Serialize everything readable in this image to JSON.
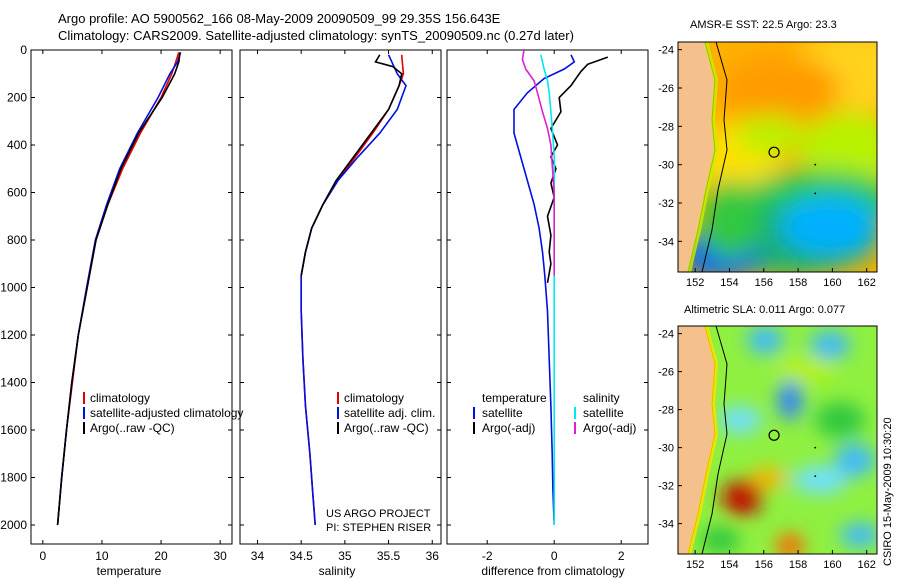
{
  "title": {
    "line1": "Argo profile: AO 5900562_166 08-May-2009 20090509_99 29.35S 156.643E",
    "line2": "Climatology: CARS2009. Satellite-adjusted climatology: synTS_20090509.nc (0.27d later)"
  },
  "colors": {
    "red": "#e00000",
    "blue": "#0010e0",
    "black": "#000000",
    "cyan": "#00e8f0",
    "magenta": "#e020d0"
  },
  "chart_data": [
    {
      "type": "line",
      "id": "temperature",
      "xlabel": "temperature",
      "ylabel": "",
      "xlim": [
        -2,
        32
      ],
      "ylim": [
        2080,
        0
      ],
      "y_inverted": true,
      "xticks": [
        0,
        10,
        20,
        30
      ],
      "yticks": [
        0,
        200,
        400,
        600,
        800,
        1000,
        1200,
        1400,
        1600,
        1800,
        2000
      ],
      "legend": [
        "climatology",
        "satellite-adjusted climatology",
        "Argo(..raw -QC)"
      ],
      "legend_pos": "bottom-right",
      "series": [
        {
          "name": "climatology",
          "color": "red",
          "points": [
            [
              23,
              10
            ],
            [
              22.5,
              50
            ],
            [
              21.8,
              100
            ],
            [
              20,
              200
            ],
            [
              16.5,
              350
            ],
            [
              13.5,
              500
            ],
            [
              11,
              650
            ],
            [
              9,
              800
            ],
            [
              7.5,
              1000
            ],
            [
              6,
              1200
            ],
            [
              5,
              1400
            ],
            [
              4,
              1600
            ],
            [
              3.2,
              1800
            ],
            [
              2.5,
              2000
            ]
          ]
        },
        {
          "name": "satellite-adjusted climatology",
          "color": "blue",
          "points": [
            [
              23.3,
              10
            ],
            [
              22.8,
              50
            ],
            [
              21.5,
              100
            ],
            [
              19.5,
              200
            ],
            [
              16,
              350
            ],
            [
              13,
              500
            ],
            [
              10.8,
              650
            ],
            [
              8.9,
              800
            ],
            [
              7.4,
              1000
            ],
            [
              6,
              1200
            ],
            [
              4.9,
              1400
            ],
            [
              4,
              1600
            ],
            [
              3.2,
              1800
            ],
            [
              2.5,
              2000
            ]
          ]
        },
        {
          "name": "Argo(..raw -QC)",
          "color": "black",
          "points": [
            [
              23.2,
              10
            ],
            [
              23,
              50
            ],
            [
              22.3,
              100
            ],
            [
              20.2,
              200
            ],
            [
              16.2,
              350
            ],
            [
              13.2,
              500
            ],
            [
              11,
              650
            ],
            [
              9,
              800
            ],
            [
              7.5,
              1000
            ],
            [
              6,
              1200
            ],
            [
              4.9,
              1400
            ],
            [
              4,
              1600
            ],
            [
              3.2,
              1800
            ],
            [
              2.5,
              2000
            ]
          ]
        }
      ]
    },
    {
      "type": "line",
      "id": "salinity",
      "xlabel": "salinity",
      "xlim": [
        33.8,
        36.1
      ],
      "ylim": [
        2080,
        0
      ],
      "y_inverted": true,
      "xticks": [
        34,
        34.5,
        35,
        35.5,
        36
      ],
      "legend": [
        "climatology",
        "satellite adj. clim.",
        "Argo(..raw -QC)"
      ],
      "legend_pos": "bottom-right",
      "annotation": [
        "US ARGO PROJECT",
        "PI: STEPHEN RISER"
      ],
      "series": [
        {
          "name": "climatology",
          "color": "red",
          "points": [
            [
              35.65,
              20
            ],
            [
              35.66,
              60
            ],
            [
              35.67,
              100
            ],
            [
              35.62,
              150
            ],
            [
              35.5,
              250
            ],
            [
              35.32,
              350
            ],
            [
              35.12,
              450
            ],
            [
              34.92,
              550
            ],
            [
              34.75,
              650
            ],
            [
              34.62,
              750
            ],
            [
              34.55,
              850
            ],
            [
              34.5,
              950
            ],
            [
              34.5,
              1100
            ],
            [
              34.52,
              1300
            ],
            [
              34.55,
              1500
            ],
            [
              34.6,
              1700
            ],
            [
              34.63,
              1850
            ],
            [
              34.66,
              2000
            ]
          ]
        },
        {
          "name": "satellite adj. clim.",
          "color": "blue",
          "points": [
            [
              35.5,
              20
            ],
            [
              35.55,
              60
            ],
            [
              35.6,
              100
            ],
            [
              35.7,
              150
            ],
            [
              35.6,
              250
            ],
            [
              35.4,
              350
            ],
            [
              35.15,
              450
            ],
            [
              34.92,
              550
            ],
            [
              34.75,
              650
            ],
            [
              34.62,
              750
            ],
            [
              34.55,
              850
            ],
            [
              34.5,
              950
            ],
            [
              34.5,
              1100
            ],
            [
              34.52,
              1300
            ],
            [
              34.55,
              1500
            ],
            [
              34.6,
              1700
            ],
            [
              34.63,
              1850
            ],
            [
              34.66,
              2000
            ]
          ]
        },
        {
          "name": "Argo(..raw -QC)",
          "color": "black",
          "points": [
            [
              35.4,
              20
            ],
            [
              35.35,
              50
            ],
            [
              35.55,
              70
            ],
            [
              35.65,
              100
            ],
            [
              35.62,
              150
            ],
            [
              35.5,
              250
            ],
            [
              35.3,
              350
            ],
            [
              35.1,
              450
            ],
            [
              34.9,
              550
            ],
            [
              34.75,
              650
            ],
            [
              34.62,
              750
            ],
            [
              34.55,
              850
            ],
            [
              34.5,
              950
            ]
          ]
        }
      ]
    },
    {
      "type": "line",
      "id": "difference",
      "xlabel": "difference from climatology",
      "xlim": [
        -3.2,
        2.8
      ],
      "ylim": [
        2080,
        0
      ],
      "y_inverted": true,
      "xticks": [
        -2,
        0,
        2
      ],
      "legend_headers": [
        "temperature",
        "salinity"
      ],
      "legend": [
        "satellite",
        "Argo(-adj)",
        "satellite",
        "Argo(-adj)"
      ],
      "legend_pos": "bottom",
      "series": [
        {
          "name": "temperature satellite",
          "color": "blue",
          "points": [
            [
              0.5,
              20
            ],
            [
              0.6,
              50
            ],
            [
              0.3,
              80
            ],
            [
              -0.3,
              120
            ],
            [
              -0.8,
              180
            ],
            [
              -1.2,
              250
            ],
            [
              -1.2,
              350
            ],
            [
              -1,
              450
            ],
            [
              -0.8,
              550
            ],
            [
              -0.6,
              650
            ],
            [
              -0.45,
              750
            ],
            [
              -0.35,
              850
            ],
            [
              -0.28,
              950
            ],
            [
              -0.2,
              1100
            ],
            [
              -0.15,
              1300
            ],
            [
              -0.1,
              1500
            ],
            [
              -0.06,
              1700
            ],
            [
              -0.04,
              1850
            ],
            [
              0,
              2000
            ]
          ]
        },
        {
          "name": "temperature Argo(-adj)",
          "color": "black",
          "points": [
            [
              1.6,
              30
            ],
            [
              1,
              60
            ],
            [
              0.8,
              90
            ],
            [
              0.7,
              110
            ],
            [
              0.5,
              150
            ],
            [
              0.15,
              200
            ],
            [
              0.2,
              260
            ],
            [
              -0.1,
              330
            ],
            [
              0.1,
              400
            ],
            [
              -0.1,
              450
            ],
            [
              0.05,
              500
            ],
            [
              -0.1,
              560
            ],
            [
              0,
              620
            ],
            [
              -0.2,
              700
            ],
            [
              -0.1,
              780
            ],
            [
              -0.15,
              850
            ],
            [
              -0.1,
              900
            ],
            [
              -0.2,
              980
            ]
          ]
        },
        {
          "name": "salinity satellite",
          "color": "cyan",
          "points": [
            [
              -0.4,
              20
            ],
            [
              -0.3,
              80
            ],
            [
              -0.2,
              130
            ],
            [
              -0.15,
              180
            ],
            [
              -0.1,
              260
            ],
            [
              -0.05,
              340
            ],
            [
              0,
              450
            ],
            [
              0,
              600
            ],
            [
              0,
              800
            ],
            [
              0,
              1000
            ],
            [
              0,
              2000
            ]
          ]
        },
        {
          "name": "salinity Argo(-adj)",
          "color": "magenta",
          "points": [
            [
              -0.9,
              0
            ],
            [
              -0.95,
              40
            ],
            [
              -0.85,
              80
            ],
            [
              -0.6,
              130
            ],
            [
              -0.5,
              180
            ],
            [
              -0.35,
              260
            ],
            [
              -0.2,
              330
            ],
            [
              -0.1,
              400
            ],
            [
              -0.05,
              500
            ],
            [
              0,
              600
            ],
            [
              0,
              800
            ],
            [
              0,
              950
            ]
          ]
        }
      ]
    },
    {
      "type": "heatmap",
      "id": "sst-map",
      "title": "AMSR-E SST: 22.5 Argo: 23.3",
      "xticks": [
        152,
        154,
        156,
        158,
        160,
        162
      ],
      "yticks": [
        -24,
        -26,
        -28,
        -30,
        -32,
        -34
      ],
      "xlim": [
        151,
        162.6
      ],
      "ylim": [
        -35.6,
        -23.6
      ],
      "marker": {
        "lon": 156.6,
        "lat": -29.35
      }
    },
    {
      "type": "heatmap",
      "id": "sla-map",
      "title": "Altimetric SLA: 0.011 Argo: 0.077",
      "xticks": [
        152,
        154,
        156,
        158,
        160,
        162
      ],
      "yticks": [
        -24,
        -26,
        -28,
        -30,
        -32,
        -34
      ],
      "xlim": [
        151,
        162.6
      ],
      "ylim": [
        -35.6,
        -23.6
      ],
      "marker": {
        "lon": 156.6,
        "lat": -29.35
      }
    }
  ],
  "credit": "CSIRO 15-May-2009 10:30:20"
}
